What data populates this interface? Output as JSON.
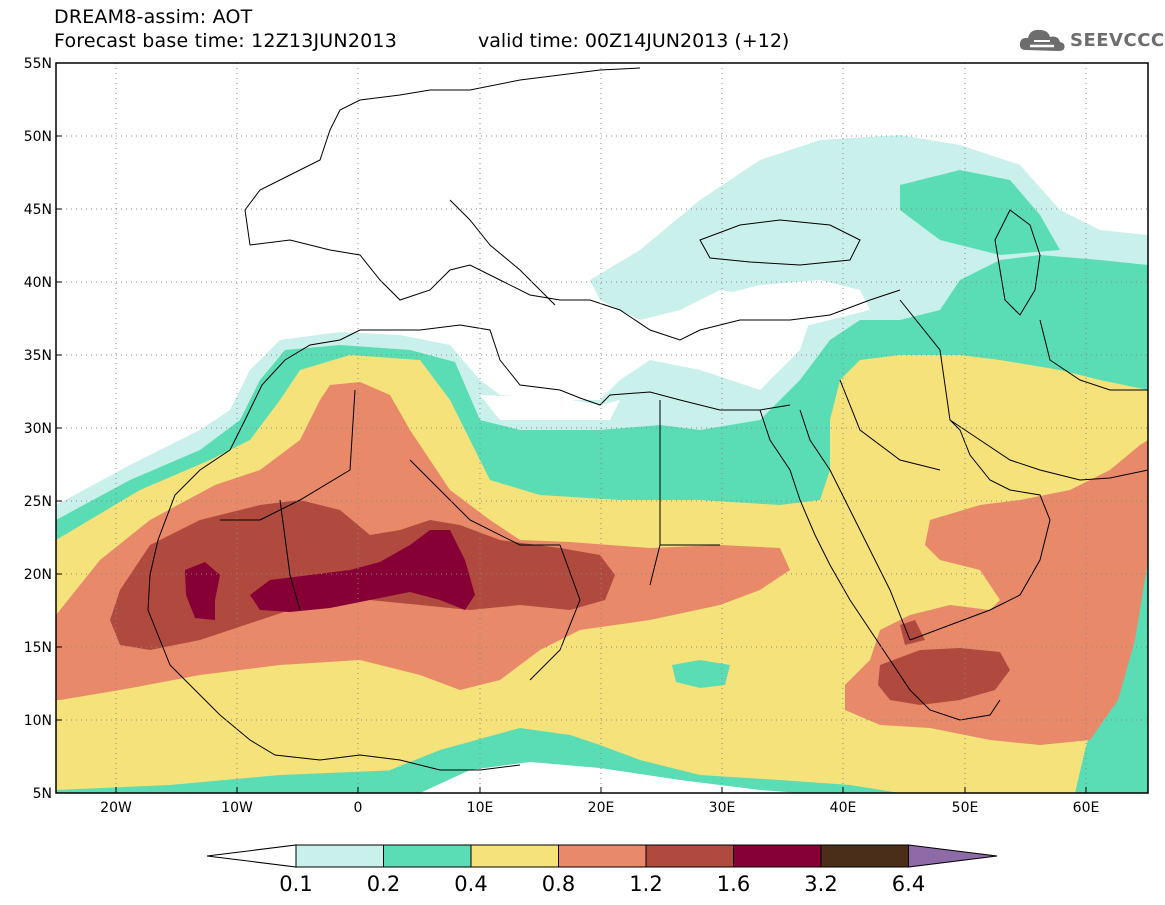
{
  "header": {
    "title": "DREAM8-assim: AOT",
    "base_time": "Forecast base time: 12Z13JUN2013",
    "valid_time": "valid time: 00Z14JUN2013 (+12)",
    "logo_text": "SEEVCCC"
  },
  "axes": {
    "lat_labels": [
      "55N",
      "50N",
      "45N",
      "40N",
      "35N",
      "30N",
      "25N",
      "20N",
      "15N",
      "10N",
      "5N"
    ],
    "lon_labels": [
      "20W",
      "10W",
      "0",
      "10E",
      "20E",
      "30E",
      "40E",
      "50E",
      "60E"
    ]
  },
  "colorbar": {
    "labels": [
      "0.1",
      "0.2",
      "0.4",
      "0.8",
      "1.2",
      "1.6",
      "3.2",
      "6.4"
    ],
    "colors": [
      "#ffffff",
      "#c9f0ea",
      "#5adcb4",
      "#f5e27a",
      "#e8896a",
      "#b04a3f",
      "#860036",
      "#4a2e1a",
      "#8e6aa6"
    ]
  },
  "palette": {
    "level_01": "#c9f0ea",
    "level_02": "#5adcb4",
    "level_04": "#f5e27a",
    "level_08": "#e8896a",
    "level_12": "#b04a3f",
    "level_16": "#860036",
    "coast": "#000000"
  }
}
